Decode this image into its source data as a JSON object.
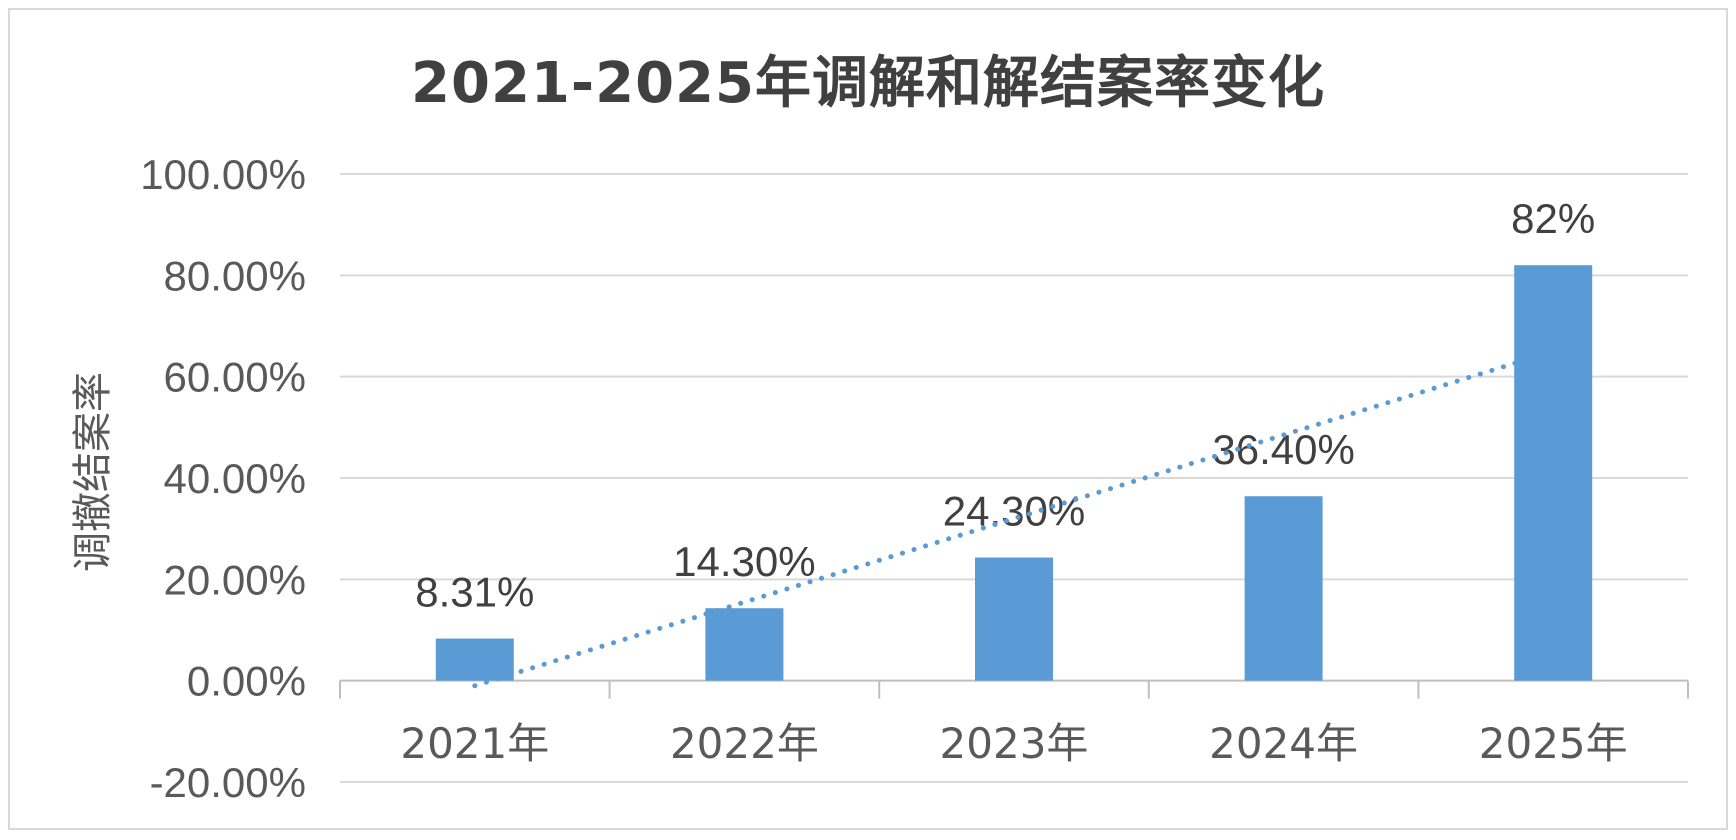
{
  "chart_data": {
    "type": "bar",
    "title": "2021-2025年调解和解结案率变化",
    "ylabel": "调撤结案率",
    "xlabel": "",
    "categories": [
      "2021年",
      "2022年",
      "2023年",
      "2024年",
      "2025年"
    ],
    "values": [
      8.31,
      14.3,
      24.3,
      36.4,
      82
    ],
    "data_labels": [
      "8.31%",
      "14.30%",
      "24.30%",
      "36.40%",
      "82%"
    ],
    "ylim": [
      -20,
      100
    ],
    "y_ticks": [
      100,
      80,
      60,
      40,
      20,
      0,
      -20
    ],
    "y_tick_labels": [
      "100.00%",
      "80.00%",
      "60.00%",
      "40.00%",
      "20.00%",
      "0.00%",
      "-20.00%"
    ],
    "grid": true,
    "legend": "none",
    "trendline": {
      "style": "dotted",
      "type": "linear",
      "start_value": -1,
      "end_value": 65
    },
    "colors": {
      "bar": "#5b9bd5",
      "trendline": "#5b9bd5",
      "grid": "#d9d9d9",
      "axis": "#bfbfbf"
    }
  }
}
